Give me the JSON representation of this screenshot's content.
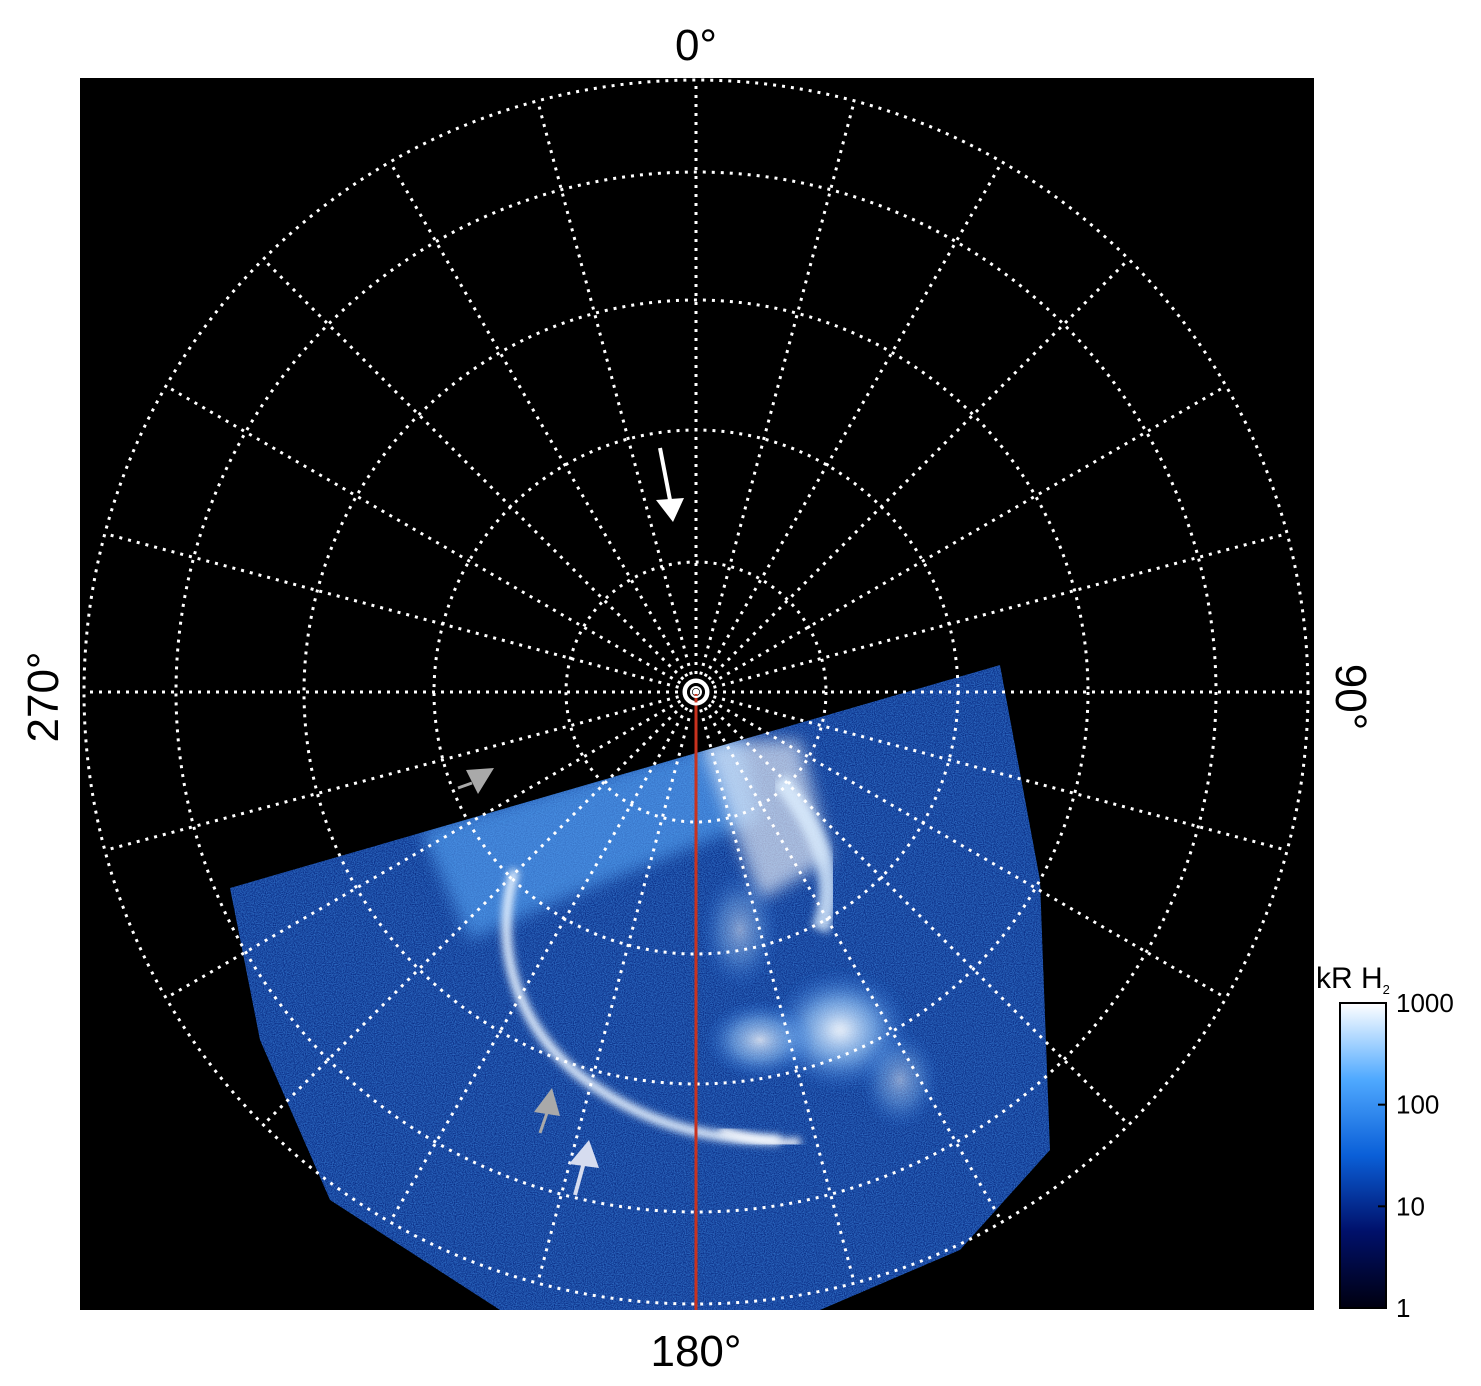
{
  "figure": {
    "labels": {
      "top": "0°",
      "bottom": "180°",
      "left": "270°",
      "right": "90°"
    },
    "colorbar": {
      "title": "kR H",
      "title_subscript": "2",
      "ticks": [
        "1000",
        "100",
        "10",
        "1"
      ],
      "scale": "log",
      "range": [
        1,
        1000
      ],
      "colors": [
        "#000010",
        "#00106a",
        "#0a5fd8",
        "#4fa9ff",
        "#ffffff"
      ]
    },
    "colors": {
      "background": "#000000",
      "grid": "#ffffff",
      "meridian_line": "#c8321e",
      "emission": "#3b8cff",
      "arrow_primary": "#ffffff",
      "arrow_secondary": "#a9a9a9"
    }
  }
}
